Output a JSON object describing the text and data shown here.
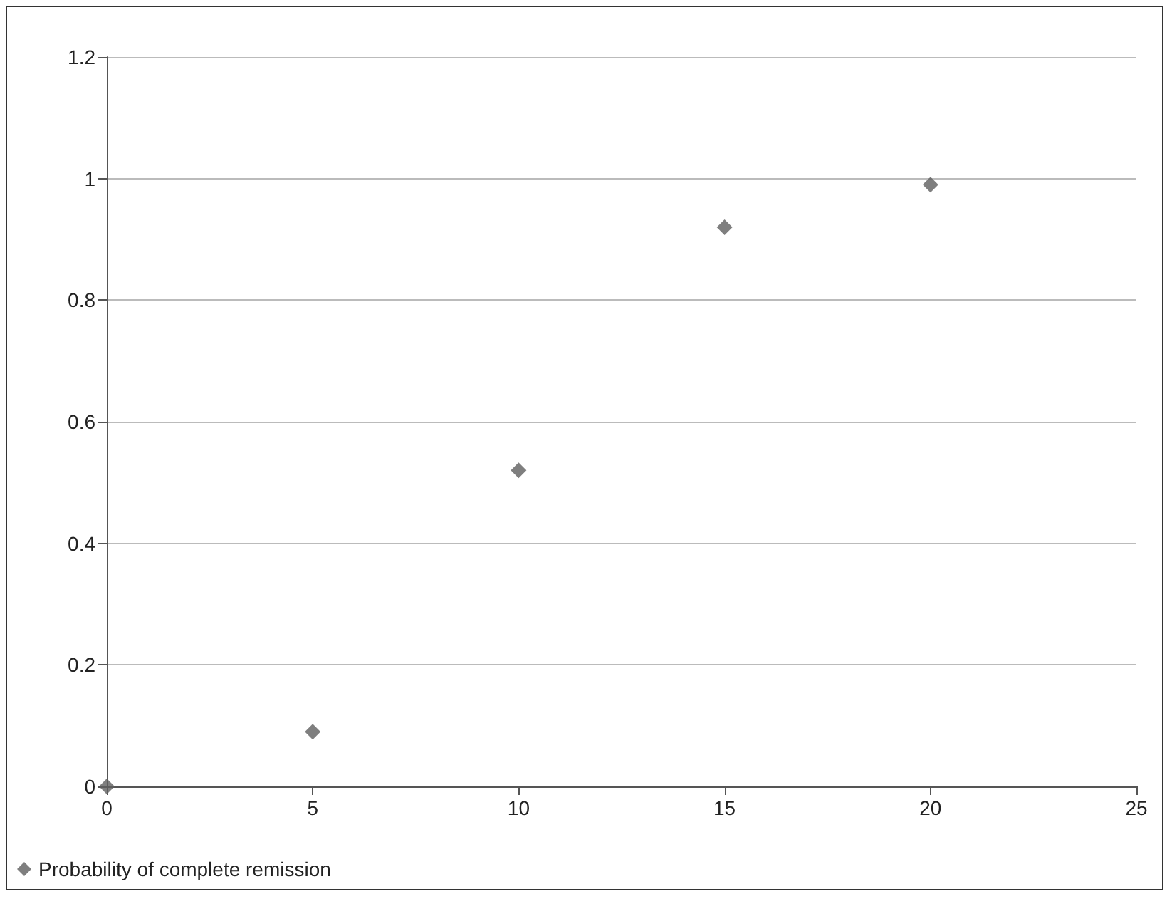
{
  "chart_data": {
    "type": "scatter",
    "x": [
      0,
      5,
      10,
      15,
      20
    ],
    "series": [
      {
        "name": "Probability of complete remission",
        "color": "#5f5f5f",
        "values": [
          0,
          0.09,
          0.52,
          0.92,
          0.99
        ]
      }
    ],
    "xlim": [
      0,
      25
    ],
    "xticks": [
      0,
      5,
      10,
      15,
      20,
      25
    ],
    "ylim": [
      0,
      1.2
    ],
    "yticks": [
      0,
      0.2,
      0.4,
      0.6,
      0.8,
      1,
      1.2
    ],
    "grid": "y",
    "legend": "bottom left",
    "marker": "diamond"
  }
}
